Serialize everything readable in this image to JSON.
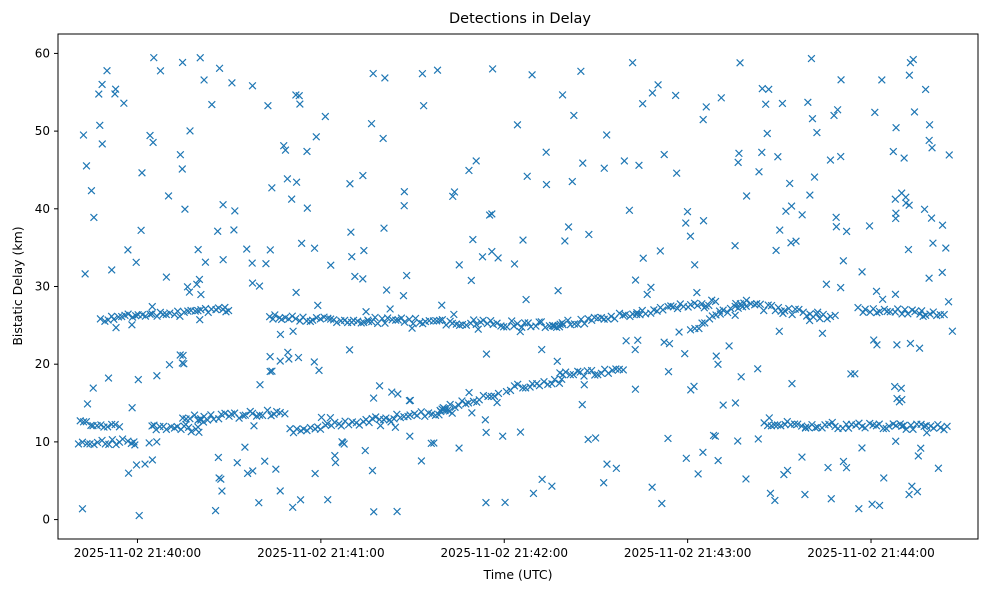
{
  "chart_data": {
    "type": "scatter",
    "title": "Detections in Delay",
    "xlabel": "Time (UTC)",
    "ylabel": "Bistatic Delay (km)",
    "x_ticks": [
      "2025-11-02 21:40:00",
      "2025-11-02 21:41:00",
      "2025-11-02 21:42:00",
      "2025-11-02 21:43:00",
      "2025-11-02 21:44:00"
    ],
    "x_tick_values": [
      0,
      60,
      120,
      180,
      240
    ],
    "xlim": [
      -26,
      275
    ],
    "y_ticks": [
      0,
      10,
      20,
      30,
      40,
      50,
      60
    ],
    "ylim": [
      -2.5,
      62.5
    ],
    "marker": "x",
    "color": "#1f77b4",
    "grid": false,
    "x_units": "seconds after 2025-11-02 21:40:00 UTC",
    "tracks": [
      {
        "x_start": -19,
        "x_end": -6,
        "y_start": 12.5,
        "y_end": 12.0
      },
      {
        "x_start": -19,
        "x_end": -1,
        "y_start": 10.0,
        "y_end": 10.0
      },
      {
        "x_start": 5,
        "x_end": 20,
        "y_start": 11.8,
        "y_end": 11.6
      },
      {
        "x_start": 15,
        "x_end": 48,
        "y_start": 13.0,
        "y_end": 13.8
      },
      {
        "x_start": 50,
        "x_end": 103,
        "y_start": 11.5,
        "y_end": 14.0
      },
      {
        "x_start": 99,
        "x_end": 118,
        "y_start": 14.2,
        "y_end": 16.2
      },
      {
        "x_start": 121,
        "x_end": 139,
        "y_start": 16.8,
        "y_end": 18.0
      },
      {
        "x_start": 138,
        "x_end": 159,
        "y_start": 18.5,
        "y_end": 19.3
      },
      {
        "x_start": 181,
        "x_end": 199,
        "y_start": 24.5,
        "y_end": 28.0
      },
      {
        "x_start": 205,
        "x_end": 265,
        "y_start": 12.3,
        "y_end": 11.8
      },
      {
        "x_start": -12,
        "x_end": 30,
        "y_start": 25.8,
        "y_end": 27.0
      },
      {
        "x_start": 43,
        "x_end": 139,
        "y_start": 26.0,
        "y_end": 25.0
      },
      {
        "x_start": 136,
        "x_end": 188,
        "y_start": 25.0,
        "y_end": 28.0
      },
      {
        "x_start": 196,
        "x_end": 228,
        "y_start": 27.8,
        "y_end": 26.0
      },
      {
        "x_start": 236,
        "x_end": 264,
        "y_start": 27.0,
        "y_end": 26.4
      }
    ],
    "noise_points": 420,
    "noise_x_range": [
      -20,
      268
    ],
    "noise_y_range": [
      0.5,
      60
    ]
  }
}
